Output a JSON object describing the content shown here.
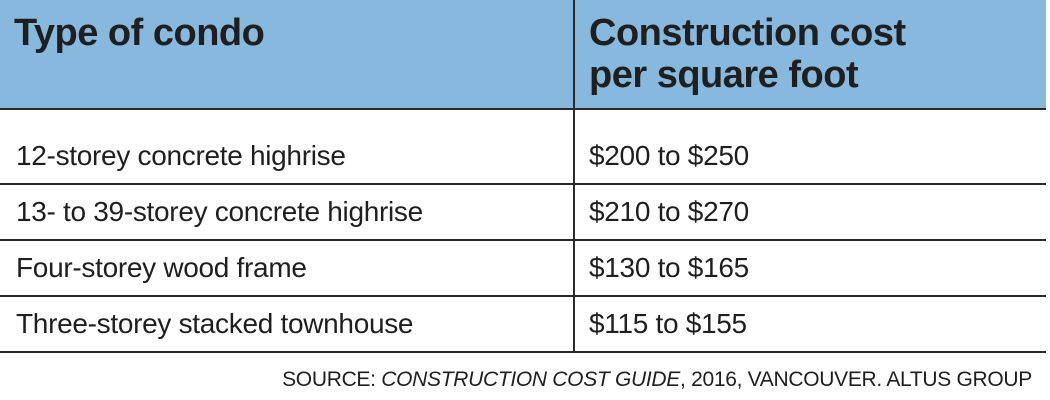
{
  "table": {
    "headers": {
      "type_of_condo": "Type of condo",
      "cost_line1": "Construction cost",
      "cost_line2": "per square foot"
    },
    "rows": [
      {
        "type": "12-storey concrete highrise",
        "cost": "$200 to $250"
      },
      {
        "type": "13- to 39-storey concrete highrise",
        "cost": "$210 to $270"
      },
      {
        "type": "Four-storey wood frame",
        "cost": "$130 to $165"
      },
      {
        "type": "Three-storey stacked townhouse",
        "cost": "$115 to $155"
      }
    ],
    "header_color": "#87b8de"
  },
  "source": {
    "prefix": "SOURCE: ",
    "title": "CONSTRUCTION COST GUIDE",
    "suffix": ", 2016, VANCOUVER. ALTUS GROUP"
  }
}
